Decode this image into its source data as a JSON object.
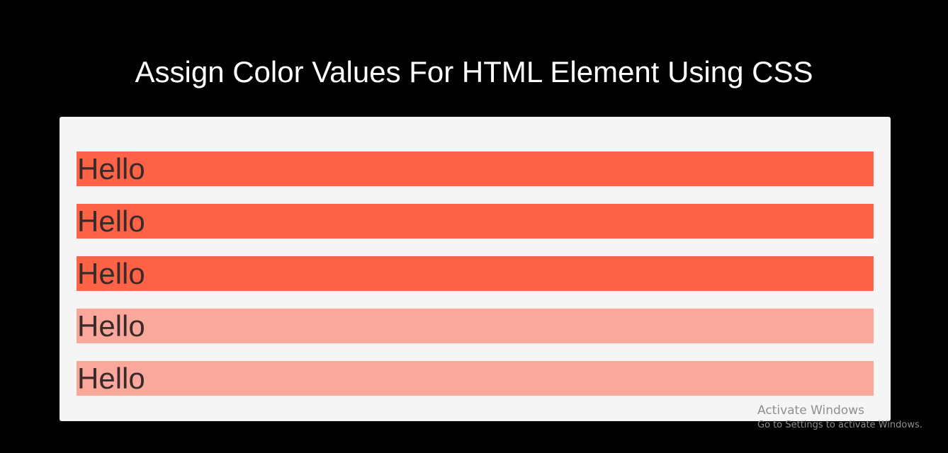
{
  "page": {
    "title": "Assign Color Values For HTML Element Using CSS"
  },
  "rows": [
    {
      "text": "Hello",
      "color": "#ff6347"
    },
    {
      "text": "Hello",
      "color": "#ff6347"
    },
    {
      "text": "Hello",
      "color": "#ff6347"
    },
    {
      "text": "Hello",
      "color": "#fba89c"
    },
    {
      "text": "Hello",
      "color": "#fba89c"
    }
  ],
  "watermark": {
    "title": "Activate Windows",
    "subtitle": "Go to Settings to activate Windows."
  }
}
